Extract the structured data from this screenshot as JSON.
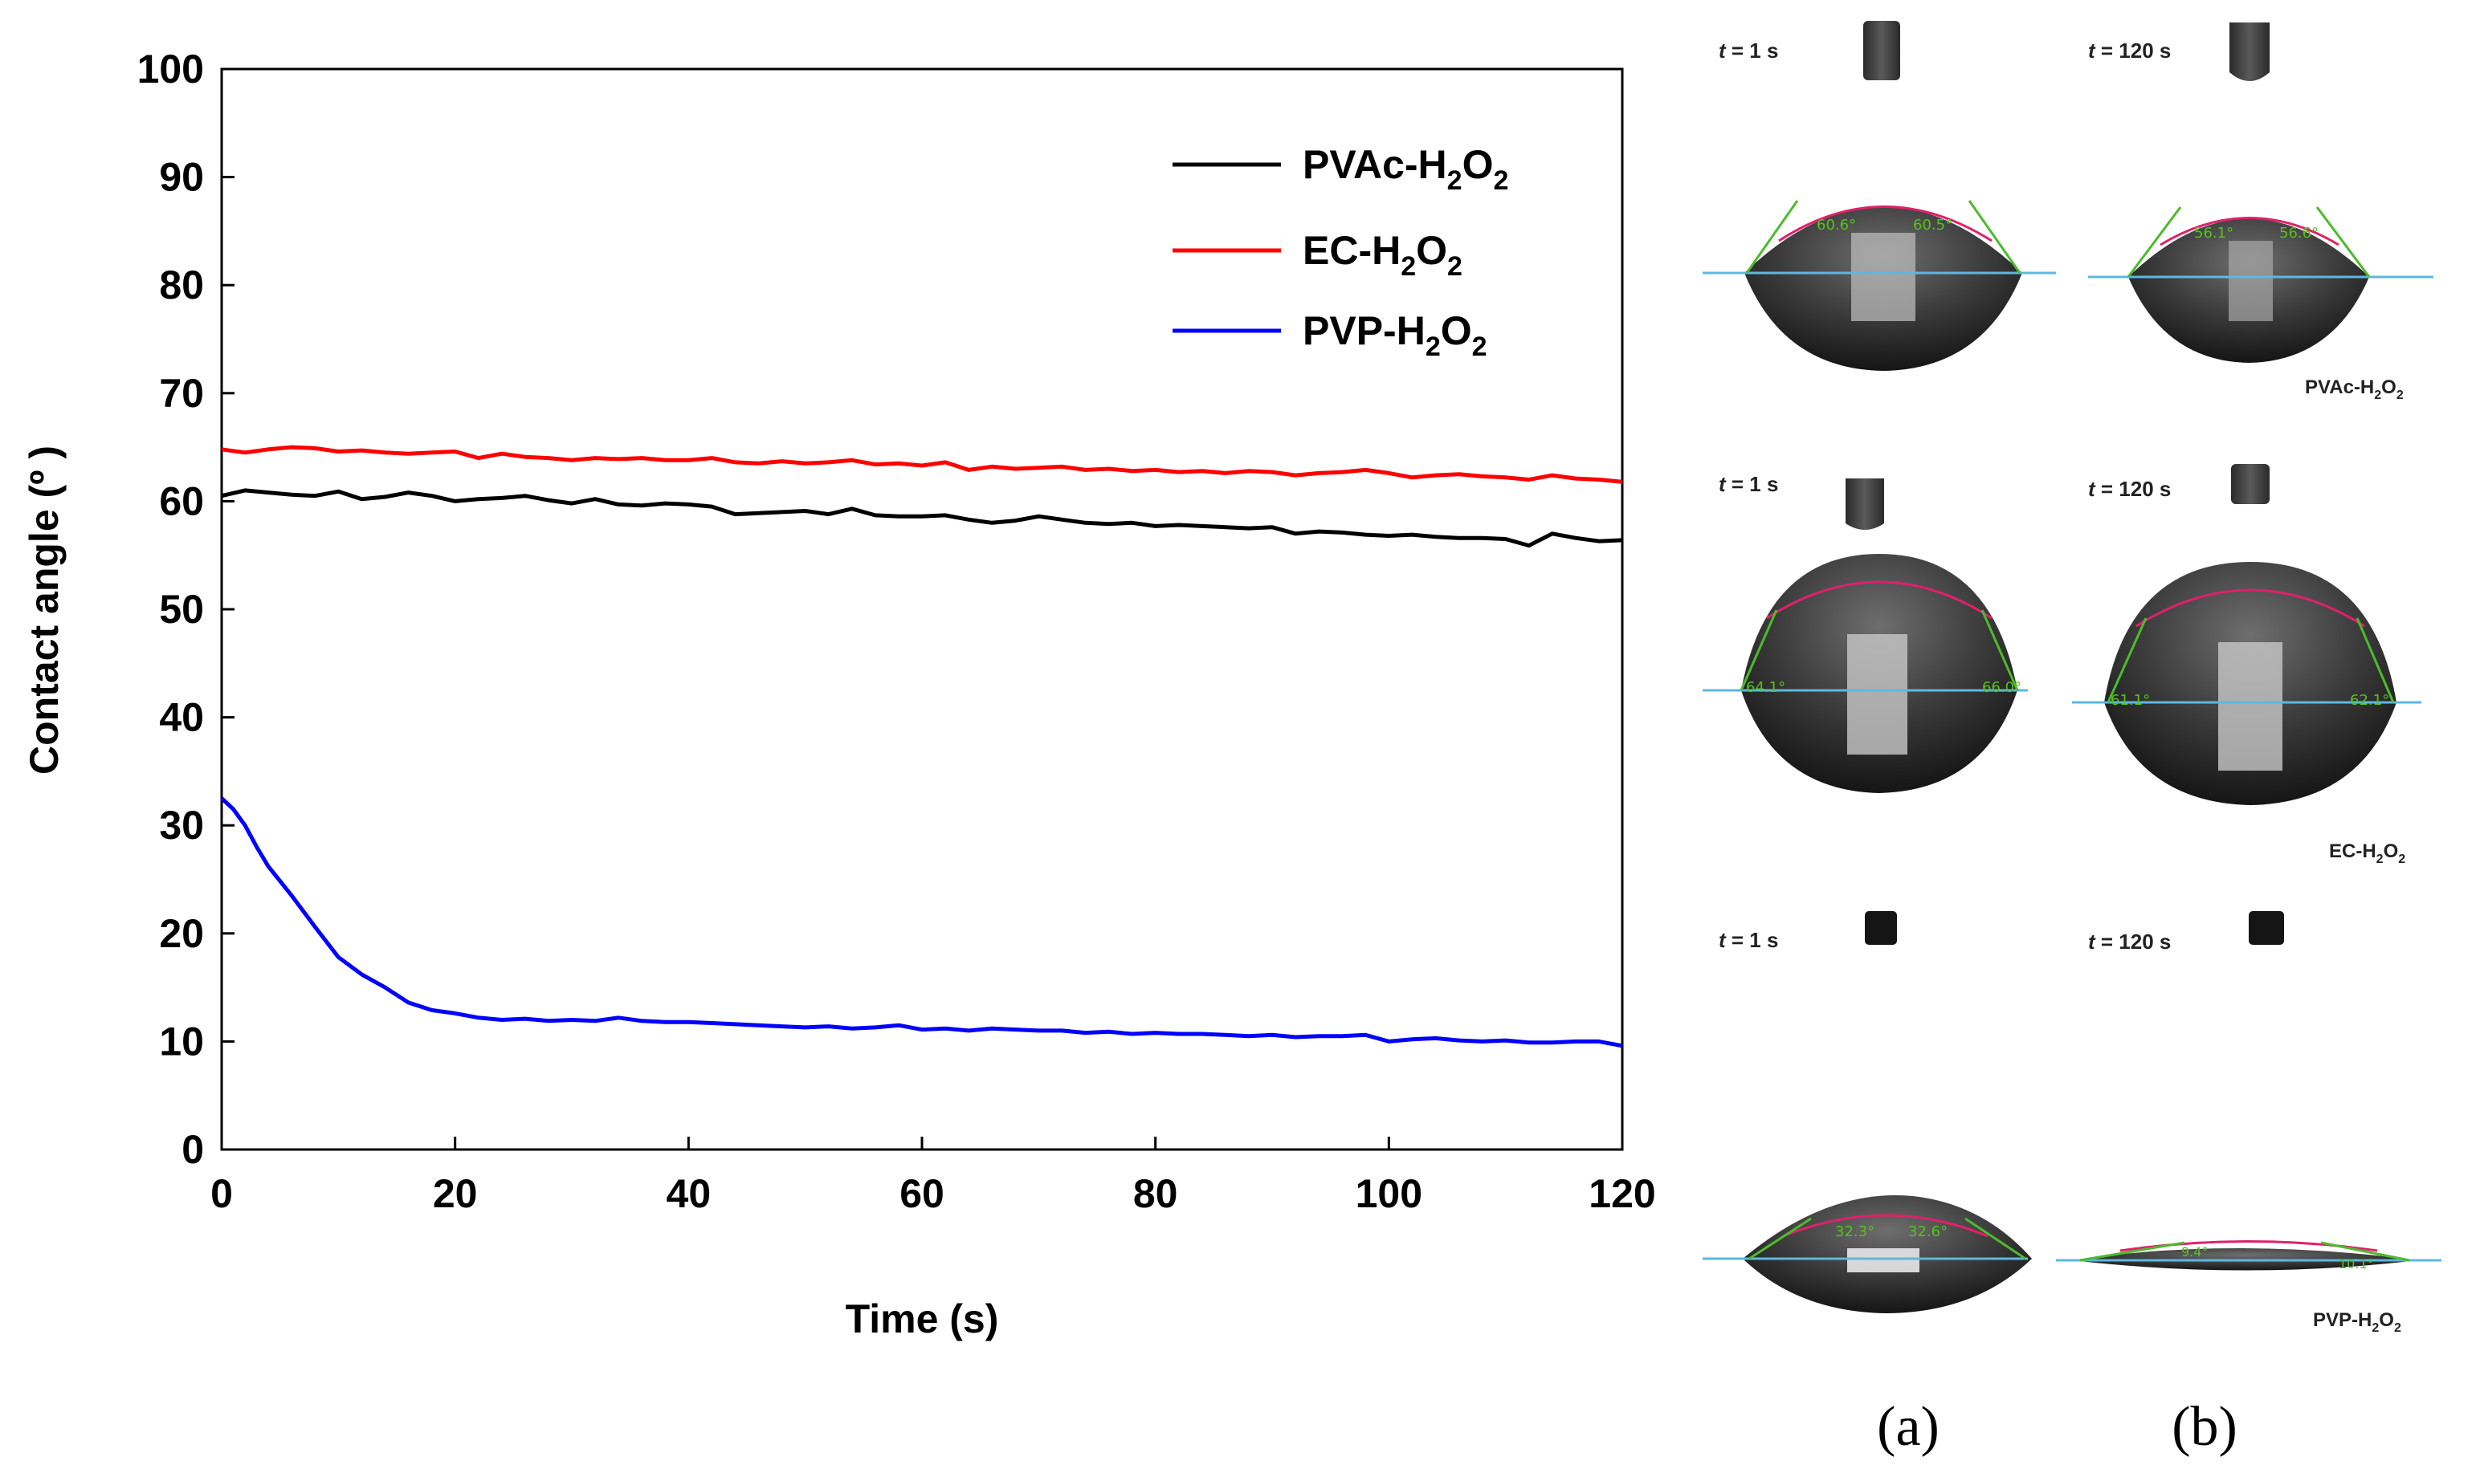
{
  "chart_data": {
    "type": "line",
    "title": "",
    "xlabel": "Time (s)",
    "ylabel": "Contact angle (º )",
    "xlim": [
      0,
      120
    ],
    "ylim": [
      0,
      100
    ],
    "xticks": [
      "0",
      "20",
      "40",
      "60",
      "80",
      "100",
      "120"
    ],
    "yticks": [
      "0",
      "10",
      "20",
      "30",
      "40",
      "50",
      "60",
      "70",
      "80",
      "90",
      "100"
    ],
    "legend_position": "top-right",
    "series": [
      {
        "name": "PVAc-H2O2",
        "legend_main": "PVAc-H",
        "legend_sub1": "2",
        "legend_mid": "O",
        "legend_sub2": "2",
        "color": "#000000",
        "x": [
          0,
          2,
          4,
          6,
          8,
          10,
          12,
          14,
          16,
          18,
          20,
          22,
          24,
          26,
          28,
          30,
          32,
          34,
          36,
          38,
          40,
          42,
          44,
          46,
          48,
          50,
          52,
          54,
          56,
          58,
          60,
          62,
          64,
          66,
          68,
          70,
          72,
          74,
          76,
          78,
          80,
          82,
          84,
          86,
          88,
          90,
          92,
          94,
          96,
          98,
          100,
          102,
          104,
          106,
          108,
          110,
          112,
          114,
          116,
          118,
          120
        ],
        "y": [
          60.5,
          61.0,
          60.8,
          60.6,
          60.5,
          60.9,
          60.2,
          60.4,
          60.8,
          60.5,
          60.0,
          60.2,
          60.3,
          60.5,
          60.1,
          59.8,
          60.2,
          59.7,
          59.6,
          59.8,
          59.7,
          59.5,
          58.8,
          58.9,
          59.0,
          59.1,
          58.8,
          59.3,
          58.7,
          58.6,
          58.6,
          58.7,
          58.3,
          58.0,
          58.2,
          58.6,
          58.3,
          58.0,
          57.9,
          58.0,
          57.7,
          57.8,
          57.7,
          57.6,
          57.5,
          57.6,
          57.0,
          57.2,
          57.1,
          56.9,
          56.8,
          56.9,
          56.7,
          56.6,
          56.6,
          56.5,
          55.9,
          57.0,
          56.6,
          56.3,
          56.4
        ]
      },
      {
        "name": "EC-H2O2",
        "legend_main": "EC-H",
        "legend_sub1": "2",
        "legend_mid": "O",
        "legend_sub2": "2",
        "color": "#ff0000",
        "x": [
          0,
          2,
          4,
          6,
          8,
          10,
          12,
          14,
          16,
          18,
          20,
          22,
          24,
          26,
          28,
          30,
          32,
          34,
          36,
          38,
          40,
          42,
          44,
          46,
          48,
          50,
          52,
          54,
          56,
          58,
          60,
          62,
          64,
          66,
          68,
          70,
          72,
          74,
          76,
          78,
          80,
          82,
          84,
          86,
          88,
          90,
          92,
          94,
          96,
          98,
          100,
          102,
          104,
          106,
          108,
          110,
          112,
          114,
          116,
          118,
          120
        ],
        "y": [
          64.8,
          64.5,
          64.8,
          65.0,
          64.9,
          64.6,
          64.7,
          64.5,
          64.4,
          64.5,
          64.6,
          64.0,
          64.4,
          64.1,
          64.0,
          63.8,
          64.0,
          63.9,
          64.0,
          63.8,
          63.8,
          64.0,
          63.6,
          63.5,
          63.7,
          63.5,
          63.6,
          63.8,
          63.4,
          63.5,
          63.3,
          63.6,
          62.9,
          63.2,
          63.0,
          63.1,
          63.2,
          62.9,
          63.0,
          62.8,
          62.9,
          62.7,
          62.8,
          62.6,
          62.8,
          62.7,
          62.4,
          62.6,
          62.7,
          62.9,
          62.6,
          62.2,
          62.4,
          62.5,
          62.3,
          62.2,
          62.0,
          62.4,
          62.1,
          62.0,
          61.8
        ]
      },
      {
        "name": "PVP-H2O2",
        "legend_main": "PVP-H",
        "legend_sub1": "2",
        "legend_mid": "O",
        "legend_sub2": "2",
        "color": "#0000ff",
        "x": [
          0,
          1,
          2,
          3,
          4,
          6,
          8,
          10,
          12,
          14,
          16,
          18,
          20,
          22,
          24,
          26,
          28,
          30,
          32,
          34,
          36,
          38,
          40,
          42,
          44,
          46,
          48,
          50,
          52,
          54,
          56,
          58,
          60,
          62,
          64,
          66,
          68,
          70,
          72,
          74,
          76,
          78,
          80,
          82,
          84,
          86,
          88,
          90,
          92,
          94,
          96,
          98,
          100,
          102,
          104,
          106,
          108,
          110,
          112,
          114,
          116,
          118,
          120
        ],
        "y": [
          32.5,
          31.5,
          30.0,
          28.0,
          26.2,
          23.5,
          20.6,
          17.8,
          16.2,
          15.0,
          13.6,
          12.9,
          12.6,
          12.2,
          12.0,
          12.1,
          11.9,
          12.0,
          11.9,
          12.2,
          11.9,
          11.8,
          11.8,
          11.7,
          11.6,
          11.5,
          11.4,
          11.3,
          11.4,
          11.2,
          11.3,
          11.5,
          11.1,
          11.2,
          11.0,
          11.2,
          11.1,
          11.0,
          11.0,
          10.8,
          10.9,
          10.7,
          10.8,
          10.7,
          10.7,
          10.6,
          10.5,
          10.6,
          10.4,
          10.5,
          10.5,
          10.6,
          10.0,
          10.2,
          10.3,
          10.1,
          10.0,
          10.1,
          9.9,
          9.9,
          10.0,
          10.0,
          9.6
        ]
      }
    ]
  },
  "photos": {
    "time_labels": {
      "t_prefix": "t",
      "t1": " = 1 s",
      "t120": " = 120 s"
    },
    "rows": [
      {
        "label_main": "PVAc-H",
        "label_sub1": "2",
        "label_mid": "O",
        "label_sub2": "2",
        "a_left_angle": "60.6°",
        "a_right_angle": "60.5°",
        "b_left_angle": "56.1°",
        "b_right_angle": "56.6°"
      },
      {
        "label_main": "EC-H",
        "label_sub1": "2",
        "label_mid": "O",
        "label_sub2": "2",
        "a_left_angle": "64.1°",
        "a_right_angle": "66.0°",
        "b_left_angle": "61.1°",
        "b_right_angle": "62.1°"
      },
      {
        "label_main": "PVP-H",
        "label_sub1": "2",
        "label_mid": "O",
        "label_sub2": "2",
        "a_left_angle": "32.3°",
        "a_right_angle": "32.6°",
        "b_left_angle": "9.4°",
        "b_right_angle": "10.1°"
      }
    ],
    "panel_a": "(a)",
    "panel_b": "(b)"
  }
}
